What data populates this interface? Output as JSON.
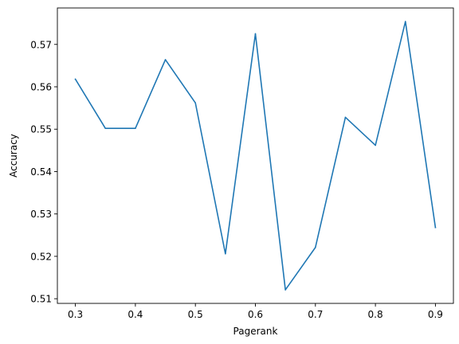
{
  "chart_data": {
    "type": "line",
    "title": "",
    "xlabel": "Pagerank",
    "ylabel": "Accuracy",
    "x": [
      0.3,
      0.35,
      0.4,
      0.45,
      0.5,
      0.55,
      0.6,
      0.65,
      0.7,
      0.75,
      0.8,
      0.85,
      0.9
    ],
    "series": [
      {
        "color": "#1f77b4",
        "values": [
          0.5618,
          0.5502,
          0.5502,
          0.5664,
          0.5562,
          0.5206,
          0.5725,
          0.5121,
          0.5221,
          0.5528,
          0.5462,
          0.5754,
          0.5268
        ]
      }
    ],
    "xlim": [
      0.27,
      0.93
    ],
    "ylim": [
      0.5089,
      0.5786
    ],
    "x_ticks": [
      0.3,
      0.4,
      0.5,
      0.6,
      0.7,
      0.8,
      0.9
    ],
    "x_tick_labels": [
      "0.3",
      "0.4",
      "0.5",
      "0.6",
      "0.7",
      "0.8",
      "0.9"
    ],
    "y_ticks": [
      0.51,
      0.52,
      0.53,
      0.54,
      0.55,
      0.56,
      0.57
    ],
    "y_tick_labels": [
      "0.51",
      "0.52",
      "0.53",
      "0.54",
      "0.55",
      "0.56",
      "0.57"
    ],
    "grid": false,
    "legend": "none"
  }
}
